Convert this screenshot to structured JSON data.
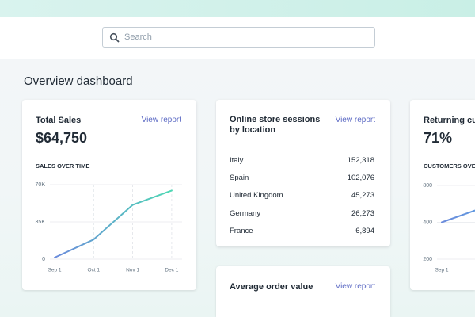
{
  "search": {
    "placeholder": "Search"
  },
  "page_title": "Overview dashboard",
  "cards": [
    {
      "title": "Total Sales",
      "link": "View report",
      "metric": "$64,750",
      "chart_data": {
        "type": "line",
        "title": "SALES OVER TIME",
        "categories": [
          "Sep 1",
          "Oct 1",
          "Nov 1",
          "Dec 1"
        ],
        "values": [
          1500,
          18500,
          51000,
          64500
        ],
        "gradient": [
          "#6b8bdc",
          "#4fd8b4"
        ],
        "ylim": [
          0,
          70000
        ],
        "yticks": [
          0,
          {
            "value": 35000,
            "label": "35K"
          },
          {
            "value": 70000,
            "label": "70K"
          }
        ],
        "log_scale": false,
        "grid": true
      }
    },
    {
      "title": "Online store sessions by location",
      "link": "View report",
      "table": {
        "rows": [
          [
            "Italy",
            "152,318"
          ],
          [
            "Spain",
            "102,076"
          ],
          [
            "United Kingdom",
            "45,273"
          ],
          [
            "Germany",
            "26,273"
          ],
          [
            "France",
            "6,894"
          ]
        ]
      }
    },
    {
      "title": "Returning customer rate",
      "metric": "71%",
      "chart_data": {
        "type": "line",
        "title": "CUSTOMERS OVER TIME",
        "categories": [
          "Sep 1",
          null
        ],
        "values": [
          400,
          520
        ],
        "gradient": [
          "#6b8bdc",
          "#5f9ae0"
        ],
        "ylim": [
          200,
          800
        ],
        "yticks": [
          200,
          400,
          800
        ],
        "log_scale": true,
        "grid": true
      }
    },
    {
      "title": "Average order value",
      "link": "View report"
    }
  ]
}
